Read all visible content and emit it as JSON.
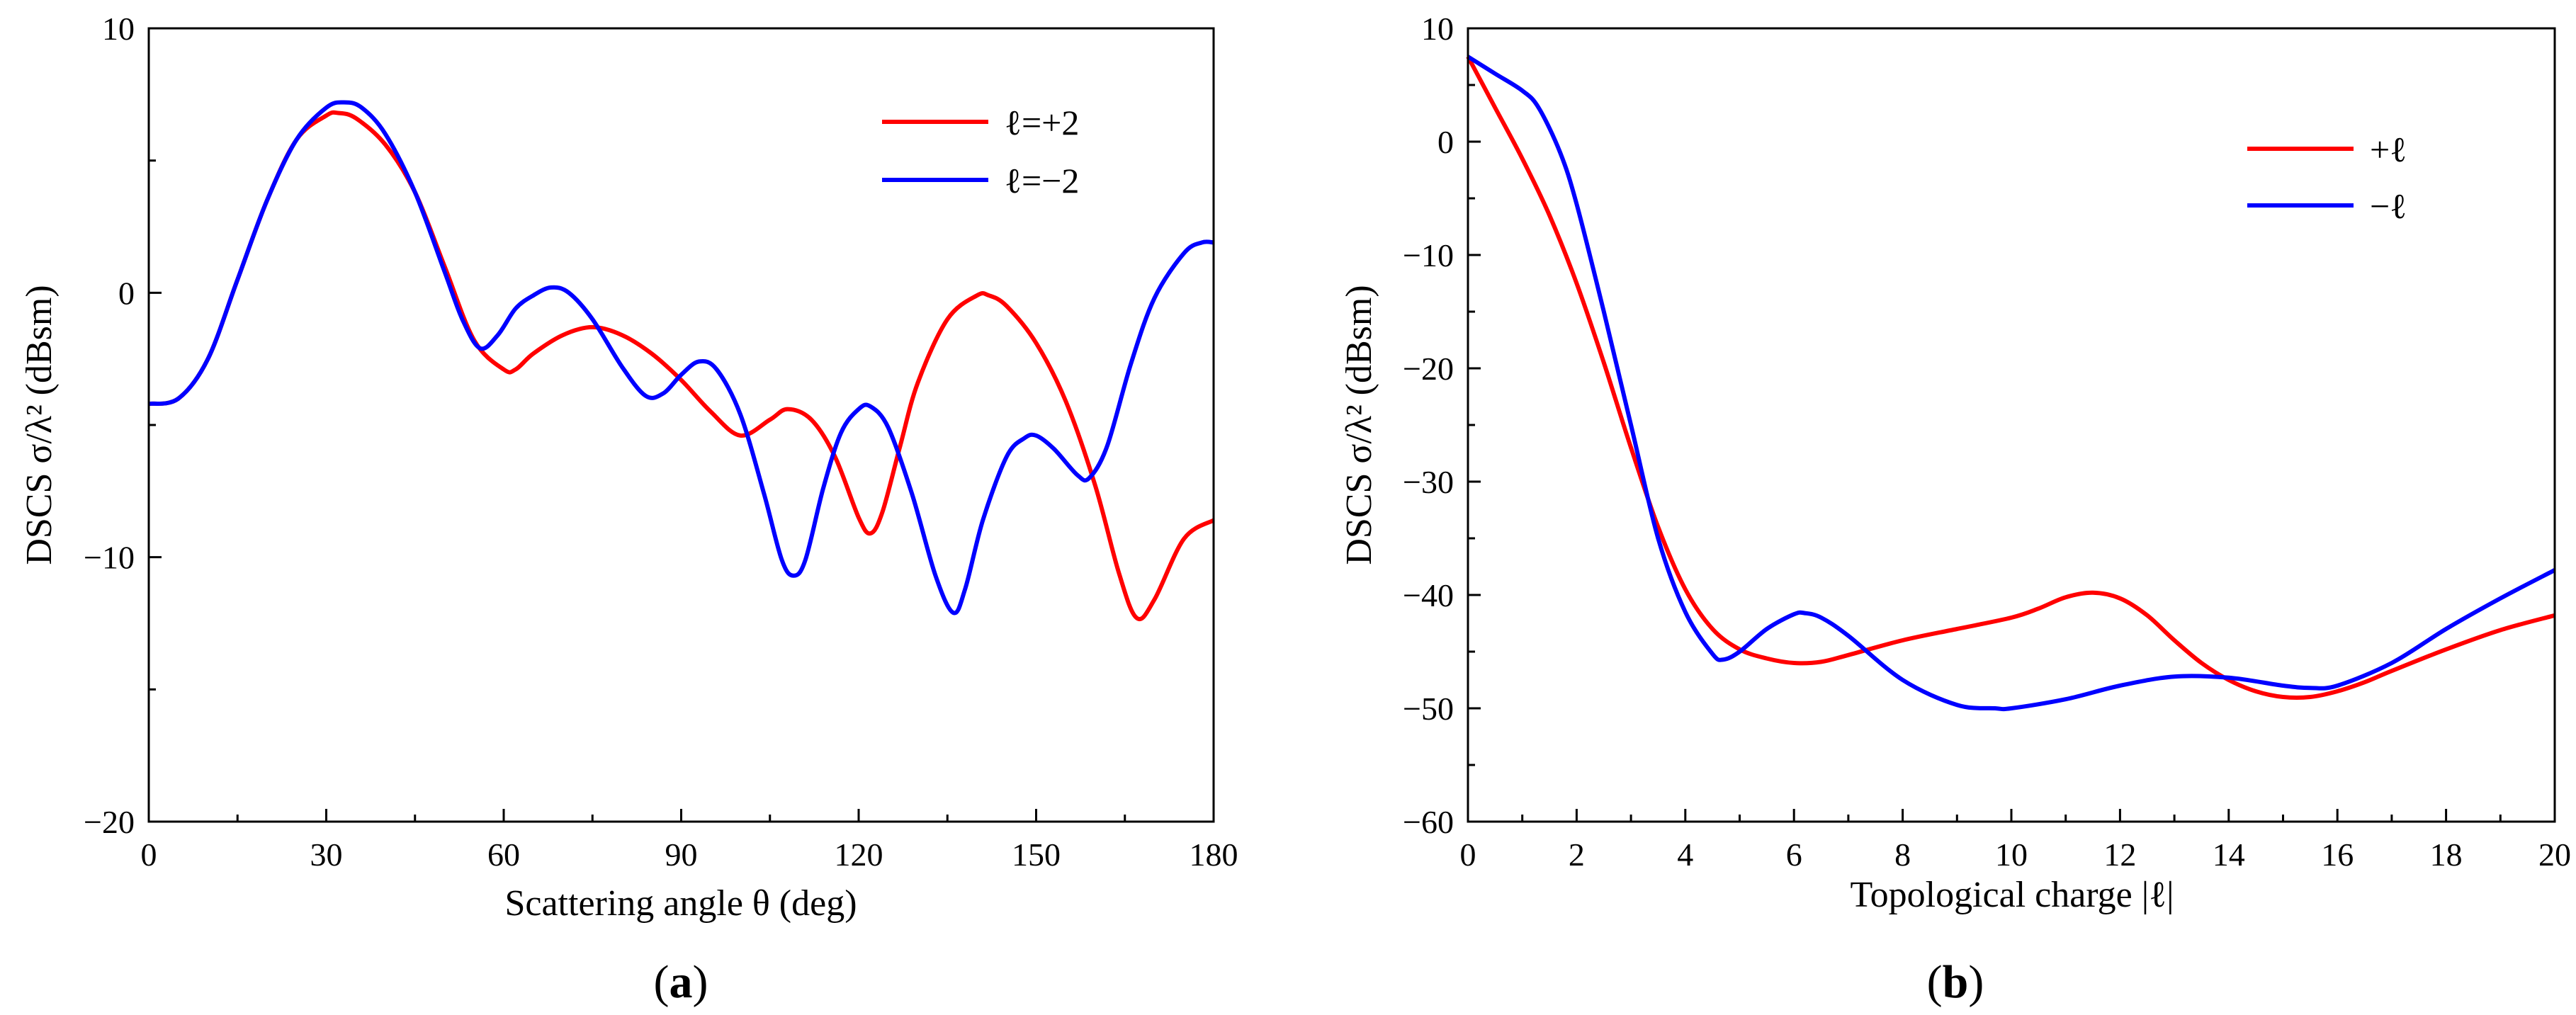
{
  "chart_data": [
    {
      "id": "a",
      "type": "line",
      "caption_open": "(",
      "caption_letter": "a",
      "caption_close": ")",
      "xlabel": "Scattering angle θ (deg)",
      "ylabel": "DSCS σ/λ² (dBsm)",
      "xlim": [
        0,
        180
      ],
      "ylim": [
        -20,
        10
      ],
      "xticks": [
        0,
        30,
        60,
        90,
        120,
        150,
        180
      ],
      "yticks": [
        -20,
        -10,
        0,
        10
      ],
      "xminor": 15,
      "yminor": 5,
      "legend_position": "top-right",
      "series": [
        {
          "name": "ℓ=+2",
          "color": "#ff0000",
          "points": [
            [
              0,
              -4.2
            ],
            [
              5,
              -4.0
            ],
            [
              10,
              -2.5
            ],
            [
              15,
              0.5
            ],
            [
              20,
              3.5
            ],
            [
              25,
              5.8
            ],
            [
              30,
              6.7
            ],
            [
              32,
              6.8
            ],
            [
              35,
              6.6
            ],
            [
              40,
              5.6
            ],
            [
              45,
              3.8
            ],
            [
              50,
              1.0
            ],
            [
              55,
              -1.8
            ],
            [
              60,
              -2.9
            ],
            [
              62,
              -2.9
            ],
            [
              65,
              -2.3
            ],
            [
              70,
              -1.6
            ],
            [
              75,
              -1.3
            ],
            [
              80,
              -1.6
            ],
            [
              85,
              -2.3
            ],
            [
              90,
              -3.3
            ],
            [
              95,
              -4.5
            ],
            [
              100,
              -5.4
            ],
            [
              105,
              -4.8
            ],
            [
              108,
              -4.4
            ],
            [
              112,
              -4.8
            ],
            [
              116,
              -6.2
            ],
            [
              120,
              -8.5
            ],
            [
              122,
              -9.1
            ],
            [
              124,
              -8.3
            ],
            [
              127,
              -5.8
            ],
            [
              130,
              -3.4
            ],
            [
              135,
              -1.0
            ],
            [
              140,
              -0.1
            ],
            [
              142,
              -0.1
            ],
            [
              145,
              -0.5
            ],
            [
              150,
              -1.9
            ],
            [
              155,
              -4.1
            ],
            [
              160,
              -7.3
            ],
            [
              164,
              -10.6
            ],
            [
              167,
              -12.3
            ],
            [
              170,
              -11.6
            ],
            [
              175,
              -9.3
            ],
            [
              180,
              -8.6
            ]
          ]
        },
        {
          "name": "ℓ=−2",
          "color": "#0000ff",
          "points": [
            [
              0,
              -4.2
            ],
            [
              5,
              -4.0
            ],
            [
              10,
              -2.5
            ],
            [
              15,
              0.5
            ],
            [
              20,
              3.5
            ],
            [
              25,
              5.8
            ],
            [
              30,
              7.0
            ],
            [
              33,
              7.2
            ],
            [
              36,
              7.0
            ],
            [
              40,
              6.0
            ],
            [
              45,
              3.8
            ],
            [
              50,
              0.8
            ],
            [
              53,
              -1.0
            ],
            [
              56,
              -2.1
            ],
            [
              59,
              -1.6
            ],
            [
              62,
              -0.6
            ],
            [
              65,
              -0.1
            ],
            [
              68,
              0.2
            ],
            [
              71,
              0.0
            ],
            [
              75,
              -1.0
            ],
            [
              80,
              -2.8
            ],
            [
              84,
              -3.9
            ],
            [
              87,
              -3.8
            ],
            [
              90,
              -3.1
            ],
            [
              93,
              -2.6
            ],
            [
              96,
              -2.9
            ],
            [
              100,
              -4.6
            ],
            [
              104,
              -7.6
            ],
            [
              107,
              -10.1
            ],
            [
              109,
              -10.7
            ],
            [
              111,
              -10.1
            ],
            [
              114,
              -7.4
            ],
            [
              117,
              -5.3
            ],
            [
              120,
              -4.4
            ],
            [
              122,
              -4.3
            ],
            [
              125,
              -5.1
            ],
            [
              129,
              -7.6
            ],
            [
              133,
              -10.7
            ],
            [
              136,
              -12.1
            ],
            [
              138,
              -11.2
            ],
            [
              141,
              -8.6
            ],
            [
              145,
              -6.2
            ],
            [
              148,
              -5.5
            ],
            [
              150,
              -5.4
            ],
            [
              153,
              -5.9
            ],
            [
              157,
              -6.9
            ],
            [
              159,
              -7.0
            ],
            [
              162,
              -5.8
            ],
            [
              166,
              -2.7
            ],
            [
              170,
              -0.2
            ],
            [
              175,
              1.5
            ],
            [
              178,
              1.9
            ],
            [
              180,
              1.9
            ]
          ]
        }
      ]
    },
    {
      "id": "b",
      "type": "line",
      "caption_open": "(",
      "caption_letter": "b",
      "caption_close": ")",
      "xlabel": "Topological charge |ℓ|",
      "ylabel": "DSCS σ/λ² (dBsm)",
      "xlim": [
        0,
        20
      ],
      "ylim": [
        -60,
        10
      ],
      "xticks": [
        0,
        2,
        4,
        6,
        8,
        10,
        12,
        14,
        16,
        18,
        20
      ],
      "yticks": [
        -60,
        -50,
        -40,
        -30,
        -20,
        -10,
        0,
        10
      ],
      "xminor": 1,
      "yminor": 5,
      "legend_position": "top-right",
      "series": [
        {
          "name": "+ℓ",
          "color": "#ff0000",
          "points": [
            [
              0,
              7.5
            ],
            [
              0.5,
              3.0
            ],
            [
              1,
              -1.5
            ],
            [
              1.5,
              -6.5
            ],
            [
              2,
              -12.5
            ],
            [
              2.5,
              -19.5
            ],
            [
              3,
              -27.0
            ],
            [
              3.5,
              -34.0
            ],
            [
              4,
              -39.5
            ],
            [
              4.5,
              -43.0
            ],
            [
              5,
              -44.8
            ],
            [
              5.5,
              -45.6
            ],
            [
              6,
              -46.0
            ],
            [
              6.5,
              -45.9
            ],
            [
              7,
              -45.3
            ],
            [
              8,
              -44.0
            ],
            [
              9,
              -43.0
            ],
            [
              10,
              -42.0
            ],
            [
              10.5,
              -41.2
            ],
            [
              11,
              -40.2
            ],
            [
              11.5,
              -39.8
            ],
            [
              12,
              -40.3
            ],
            [
              12.5,
              -41.8
            ],
            [
              13,
              -44.0
            ],
            [
              13.5,
              -46.0
            ],
            [
              14,
              -47.5
            ],
            [
              14.5,
              -48.5
            ],
            [
              15,
              -49.0
            ],
            [
              15.5,
              -49.0
            ],
            [
              16,
              -48.5
            ],
            [
              16.5,
              -47.7
            ],
            [
              17,
              -46.7
            ],
            [
              18,
              -44.8
            ],
            [
              19,
              -43.1
            ],
            [
              20,
              -41.8
            ]
          ]
        },
        {
          "name": "−ℓ",
          "color": "#0000ff",
          "points": [
            [
              0,
              7.5
            ],
            [
              0.5,
              6.0
            ],
            [
              1,
              4.5
            ],
            [
              1.3,
              3.0
            ],
            [
              1.7,
              -1.0
            ],
            [
              2,
              -5.5
            ],
            [
              2.5,
              -15.0
            ],
            [
              3,
              -25.0
            ],
            [
              3.5,
              -35.0
            ],
            [
              4,
              -41.5
            ],
            [
              4.5,
              -45.2
            ],
            [
              4.7,
              -45.7
            ],
            [
              5,
              -45.0
            ],
            [
              5.5,
              -43.0
            ],
            [
              6,
              -41.7
            ],
            [
              6.2,
              -41.6
            ],
            [
              6.5,
              -42.0
            ],
            [
              7,
              -43.6
            ],
            [
              8,
              -47.5
            ],
            [
              9,
              -49.7
            ],
            [
              9.7,
              -50.0
            ],
            [
              10,
              -50.0
            ],
            [
              11,
              -49.2
            ],
            [
              12,
              -48.0
            ],
            [
              13,
              -47.2
            ],
            [
              14,
              -47.3
            ],
            [
              15,
              -48.0
            ],
            [
              15.5,
              -48.2
            ],
            [
              16,
              -48.0
            ],
            [
              17,
              -46.0
            ],
            [
              18,
              -43.0
            ],
            [
              19,
              -40.3
            ],
            [
              20,
              -37.8
            ]
          ]
        }
      ]
    }
  ]
}
